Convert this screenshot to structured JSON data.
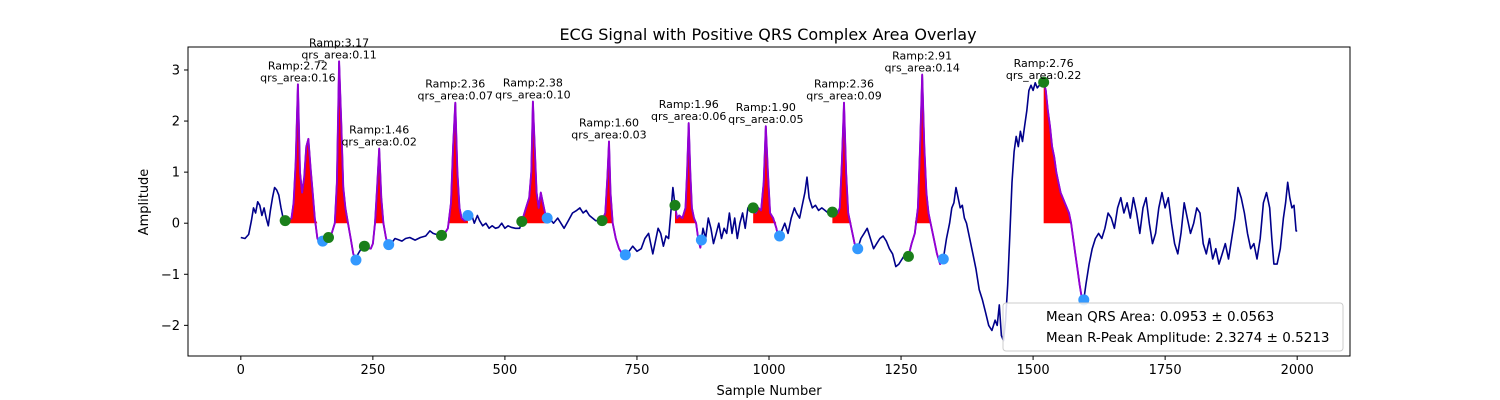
{
  "chart_data": {
    "type": "line",
    "title": "ECG Signal with Positive QRS Complex Area Overlay",
    "xlabel": "Sample Number",
    "ylabel": "Amplitude",
    "xlim": [
      -100,
      2100
    ],
    "ylim": [
      -2.6,
      3.45
    ],
    "x_ticks": [
      0,
      250,
      500,
      750,
      1000,
      1250,
      1500,
      1750,
      2000
    ],
    "y_ticks": [
      -2,
      -1,
      0,
      1,
      2,
      3
    ],
    "grid": false,
    "colors": {
      "signal": "#00008b",
      "qrs_segment": "#9400d3",
      "qrs_area": "#ff0000",
      "qrs_onset_marker": "#1a7f1a",
      "qrs_offset_marker": "#3399ff"
    },
    "signal_points": [
      [
        0,
        -0.28
      ],
      [
        8,
        -0.3
      ],
      [
        15,
        -0.22
      ],
      [
        20,
        0.05
      ],
      [
        24,
        0.3
      ],
      [
        28,
        0.2
      ],
      [
        32,
        0.42
      ],
      [
        36,
        0.35
      ],
      [
        40,
        0.15
      ],
      [
        44,
        0.3
      ],
      [
        48,
        0.1
      ],
      [
        52,
        -0.05
      ],
      [
        56,
        0.25
      ],
      [
        60,
        0.5
      ],
      [
        64,
        0.7
      ],
      [
        68,
        0.65
      ],
      [
        72,
        0.55
      ],
      [
        76,
        0.3
      ],
      [
        80,
        0.1
      ],
      [
        84,
        0.05
      ],
      [
        90,
        0.05
      ],
      [
        96,
        0.1
      ],
      [
        100,
        0.4
      ],
      [
        104,
        1.2
      ],
      [
        108,
        2.72
      ],
      [
        112,
        1.0
      ],
      [
        116,
        0.6
      ],
      [
        120,
        0.9
      ],
      [
        124,
        1.5
      ],
      [
        128,
        1.65
      ],
      [
        132,
        1.1
      ],
      [
        136,
        0.6
      ],
      [
        140,
        0.1
      ],
      [
        145,
        -0.3
      ],
      [
        150,
        -0.4
      ],
      [
        155,
        -0.35
      ],
      [
        160,
        -0.25
      ],
      [
        166,
        -0.28
      ],
      [
        172,
        -0.2
      ],
      [
        178,
        0.0
      ],
      [
        182,
        0.8
      ],
      [
        186,
        3.17
      ],
      [
        190,
        2.0
      ],
      [
        194,
        0.7
      ],
      [
        198,
        0.3
      ],
      [
        203,
        0.0
      ],
      [
        208,
        -0.3
      ],
      [
        213,
        -0.6
      ],
      [
        218,
        -0.72
      ],
      [
        222,
        -0.6
      ],
      [
        228,
        -0.5
      ],
      [
        234,
        -0.45
      ],
      [
        240,
        -0.48
      ],
      [
        246,
        -0.5
      ],
      [
        250,
        -0.4
      ],
      [
        254,
        0.0
      ],
      [
        258,
        0.7
      ],
      [
        262,
        1.46
      ],
      [
        266,
        0.5
      ],
      [
        270,
        0.0
      ],
      [
        275,
        -0.3
      ],
      [
        280,
        -0.42
      ],
      [
        286,
        -0.38
      ],
      [
        292,
        -0.3
      ],
      [
        298,
        -0.32
      ],
      [
        305,
        -0.35
      ],
      [
        312,
        -0.3
      ],
      [
        320,
        -0.28
      ],
      [
        330,
        -0.33
      ],
      [
        340,
        -0.28
      ],
      [
        350,
        -0.25
      ],
      [
        358,
        -0.15
      ],
      [
        364,
        -0.2
      ],
      [
        370,
        -0.22
      ],
      [
        378,
        -0.25
      ],
      [
        386,
        -0.2
      ],
      [
        392,
        -0.1
      ],
      [
        398,
        0.4
      ],
      [
        402,
        1.5
      ],
      [
        406,
        2.36
      ],
      [
        410,
        1.0
      ],
      [
        414,
        0.3
      ],
      [
        418,
        0.1
      ],
      [
        424,
        0.05
      ],
      [
        430,
        0.15
      ],
      [
        436,
        0.2
      ],
      [
        442,
        0.0
      ],
      [
        448,
        0.15
      ],
      [
        452,
        0.05
      ],
      [
        458,
        -0.05
      ],
      [
        464,
        0.0
      ],
      [
        470,
        -0.1
      ],
      [
        476,
        -0.05
      ],
      [
        482,
        -0.1
      ],
      [
        488,
        -0.08
      ],
      [
        494,
        0.0
      ],
      [
        500,
        -0.1
      ],
      [
        506,
        -0.05
      ],
      [
        512,
        -0.08
      ],
      [
        520,
        -0.1
      ],
      [
        528,
        -0.1
      ],
      [
        534,
        0.1
      ],
      [
        540,
        0.3
      ],
      [
        546,
        0.5
      ],
      [
        550,
        1.0
      ],
      [
        553,
        2.38
      ],
      [
        556,
        1.6
      ],
      [
        560,
        0.6
      ],
      [
        564,
        0.3
      ],
      [
        568,
        0.6
      ],
      [
        572,
        0.4
      ],
      [
        578,
        0.1
      ],
      [
        584,
        0.1
      ],
      [
        592,
        0.0
      ],
      [
        600,
        0.1
      ],
      [
        606,
        0.0
      ],
      [
        612,
        -0.1
      ],
      [
        620,
        0.05
      ],
      [
        628,
        0.2
      ],
      [
        636,
        0.25
      ],
      [
        642,
        0.3
      ],
      [
        648,
        0.2
      ],
      [
        654,
        0.25
      ],
      [
        660,
        0.15
      ],
      [
        666,
        0.1
      ],
      [
        672,
        0.05
      ],
      [
        678,
        0.05
      ],
      [
        684,
        0.05
      ],
      [
        690,
        0.2
      ],
      [
        694,
        0.9
      ],
      [
        697,
        1.6
      ],
      [
        700,
        0.6
      ],
      [
        704,
        0.0
      ],
      [
        710,
        -0.3
      ],
      [
        716,
        -0.5
      ],
      [
        722,
        -0.6
      ],
      [
        728,
        -0.62
      ],
      [
        735,
        -0.55
      ],
      [
        742,
        -0.45
      ],
      [
        750,
        -0.55
      ],
      [
        758,
        -0.5
      ],
      [
        765,
        -0.3
      ],
      [
        772,
        -0.2
      ],
      [
        780,
        -0.6
      ],
      [
        786,
        -0.3
      ],
      [
        790,
        -0.1
      ],
      [
        795,
        -0.2
      ],
      [
        800,
        -0.45
      ],
      [
        805,
        -0.25
      ],
      [
        810,
        -0.3
      ],
      [
        814,
        0.2
      ],
      [
        818,
        0.7
      ],
      [
        822,
        0.35
      ],
      [
        826,
        0.1
      ],
      [
        830,
        0.15
      ],
      [
        836,
        0.1
      ],
      [
        842,
        0.3
      ],
      [
        845,
        1.0
      ],
      [
        848,
        1.96
      ],
      [
        851,
        1.0
      ],
      [
        854,
        0.3
      ],
      [
        858,
        0.1
      ],
      [
        862,
        0.0
      ],
      [
        866,
        -0.3
      ],
      [
        870,
        -0.48
      ],
      [
        875,
        -0.1
      ],
      [
        880,
        -0.3
      ],
      [
        885,
        0.1
      ],
      [
        890,
        -0.1
      ],
      [
        895,
        -0.4
      ],
      [
        900,
        -0.2
      ],
      [
        905,
        0.0
      ],
      [
        910,
        -0.3
      ],
      [
        915,
        -0.1
      ],
      [
        920,
        -0.2
      ],
      [
        925,
        0.2
      ],
      [
        930,
        -0.2
      ],
      [
        935,
        0.1
      ],
      [
        940,
        -0.3
      ],
      [
        945,
        0.0
      ],
      [
        950,
        0.2
      ],
      [
        955,
        -0.1
      ],
      [
        960,
        0.3
      ],
      [
        965,
        0.35
      ],
      [
        970,
        0.3
      ],
      [
        975,
        0.2
      ],
      [
        980,
        0.3
      ],
      [
        985,
        0.25
      ],
      [
        990,
        0.8
      ],
      [
        994,
        1.9
      ],
      [
        998,
        1.0
      ],
      [
        1002,
        0.2
      ],
      [
        1008,
        0.1
      ],
      [
        1014,
        -0.1
      ],
      [
        1018,
        -0.3
      ],
      [
        1024,
        -0.15
      ],
      [
        1030,
        0.0
      ],
      [
        1036,
        -0.2
      ],
      [
        1042,
        0.1
      ],
      [
        1048,
        0.3
      ],
      [
        1052,
        0.2
      ],
      [
        1058,
        0.1
      ],
      [
        1062,
        0.3
      ],
      [
        1068,
        0.6
      ],
      [
        1072,
        0.9
      ],
      [
        1076,
        0.5
      ],
      [
        1082,
        0.3
      ],
      [
        1088,
        0.35
      ],
      [
        1094,
        0.25
      ],
      [
        1100,
        0.3
      ],
      [
        1106,
        0.25
      ],
      [
        1112,
        0.2
      ],
      [
        1118,
        0.2
      ],
      [
        1124,
        0.25
      ],
      [
        1130,
        0.2
      ],
      [
        1134,
        0.3
      ],
      [
        1138,
        1.2
      ],
      [
        1142,
        2.36
      ],
      [
        1146,
        1.0
      ],
      [
        1150,
        0.2
      ],
      [
        1156,
        -0.1
      ],
      [
        1162,
        -0.4
      ],
      [
        1168,
        -0.5
      ],
      [
        1174,
        -0.3
      ],
      [
        1180,
        -0.2
      ],
      [
        1186,
        -0.1
      ],
      [
        1192,
        -0.3
      ],
      [
        1198,
        -0.5
      ],
      [
        1204,
        -0.4
      ],
      [
        1210,
        -0.3
      ],
      [
        1216,
        -0.25
      ],
      [
        1222,
        -0.35
      ],
      [
        1228,
        -0.5
      ],
      [
        1234,
        -0.6
      ],
      [
        1240,
        -0.85
      ],
      [
        1246,
        -0.8
      ],
      [
        1252,
        -0.7
      ],
      [
        1258,
        -0.6
      ],
      [
        1264,
        -0.65
      ],
      [
        1270,
        -0.4
      ],
      [
        1276,
        -0.2
      ],
      [
        1282,
        0.3
      ],
      [
        1286,
        1.5
      ],
      [
        1290,
        2.91
      ],
      [
        1294,
        1.5
      ],
      [
        1298,
        0.6
      ],
      [
        1302,
        0.2
      ],
      [
        1306,
        0.0
      ],
      [
        1312,
        -0.3
      ],
      [
        1318,
        -0.6
      ],
      [
        1324,
        -0.8
      ],
      [
        1330,
        -0.7
      ],
      [
        1336,
        -0.3
      ],
      [
        1342,
        0.0
      ],
      [
        1346,
        0.3
      ],
      [
        1350,
        0.4
      ],
      [
        1354,
        0.7
      ],
      [
        1358,
        0.5
      ],
      [
        1362,
        0.3
      ],
      [
        1366,
        0.35
      ],
      [
        1370,
        0.1
      ],
      [
        1374,
        0.0
      ],
      [
        1380,
        -0.3
      ],
      [
        1386,
        -0.6
      ],
      [
        1392,
        -0.9
      ],
      [
        1398,
        -1.3
      ],
      [
        1404,
        -1.5
      ],
      [
        1410,
        -1.75
      ],
      [
        1416,
        -2.0
      ],
      [
        1422,
        -2.1
      ],
      [
        1428,
        -1.9
      ],
      [
        1432,
        -2.0
      ],
      [
        1436,
        -1.6
      ],
      [
        1440,
        -2.2
      ],
      [
        1444,
        -2.3
      ],
      [
        1448,
        -1.9
      ],
      [
        1452,
        -1.2
      ],
      [
        1456,
        -0.2
      ],
      [
        1460,
        0.8
      ],
      [
        1464,
        1.4
      ],
      [
        1468,
        1.7
      ],
      [
        1472,
        1.5
      ],
      [
        1476,
        1.8
      ],
      [
        1480,
        1.6
      ],
      [
        1484,
        1.9
      ],
      [
        1488,
        2.2
      ],
      [
        1492,
        2.6
      ],
      [
        1496,
        2.7
      ],
      [
        1500,
        2.6
      ],
      [
        1504,
        2.75
      ],
      [
        1508,
        2.65
      ],
      [
        1512,
        2.7
      ],
      [
        1516,
        2.72
      ],
      [
        1520,
        2.76
      ],
      [
        1524,
        2.6
      ],
      [
        1528,
        2.2
      ],
      [
        1532,
        1.9
      ],
      [
        1536,
        1.5
      ],
      [
        1540,
        1.3
      ],
      [
        1544,
        1.0
      ],
      [
        1548,
        0.8
      ],
      [
        1552,
        0.6
      ],
      [
        1556,
        0.5
      ],
      [
        1560,
        0.4
      ],
      [
        1564,
        0.3
      ],
      [
        1568,
        0.2
      ],
      [
        1572,
        0.0
      ],
      [
        1576,
        -0.3
      ],
      [
        1580,
        -0.6
      ],
      [
        1584,
        -0.9
      ],
      [
        1588,
        -1.2
      ],
      [
        1592,
        -1.45
      ],
      [
        1596,
        -1.5
      ],
      [
        1600,
        -1.2
      ],
      [
        1606,
        -0.8
      ],
      [
        1612,
        -0.5
      ],
      [
        1618,
        -0.3
      ],
      [
        1624,
        -0.2
      ],
      [
        1630,
        -0.3
      ],
      [
        1636,
        -0.1
      ],
      [
        1642,
        0.2
      ],
      [
        1648,
        0.1
      ],
      [
        1654,
        -0.1
      ],
      [
        1660,
        0.3
      ],
      [
        1666,
        0.5
      ],
      [
        1672,
        0.2
      ],
      [
        1678,
        0.4
      ],
      [
        1684,
        0.1
      ],
      [
        1690,
        0.5
      ],
      [
        1696,
        0.2
      ],
      [
        1702,
        -0.2
      ],
      [
        1708,
        0.3
      ],
      [
        1714,
        0.5
      ],
      [
        1720,
        0.0
      ],
      [
        1726,
        -0.4
      ],
      [
        1732,
        -0.2
      ],
      [
        1738,
        0.3
      ],
      [
        1744,
        0.6
      ],
      [
        1750,
        0.3
      ],
      [
        1756,
        0.5
      ],
      [
        1762,
        0.0
      ],
      [
        1768,
        -0.4
      ],
      [
        1774,
        -0.6
      ],
      [
        1780,
        -0.2
      ],
      [
        1786,
        0.4
      ],
      [
        1792,
        0.1
      ],
      [
        1798,
        -0.2
      ],
      [
        1804,
        0.0
      ],
      [
        1810,
        0.3
      ],
      [
        1816,
        0.2
      ],
      [
        1822,
        -0.4
      ],
      [
        1828,
        -0.6
      ],
      [
        1834,
        -0.3
      ],
      [
        1840,
        -0.7
      ],
      [
        1846,
        -0.5
      ],
      [
        1852,
        -0.8
      ],
      [
        1858,
        -0.6
      ],
      [
        1864,
        -0.4
      ],
      [
        1870,
        -0.7
      ],
      [
        1876,
        -0.3
      ],
      [
        1882,
        0.1
      ],
      [
        1888,
        0.7
      ],
      [
        1894,
        0.5
      ],
      [
        1900,
        0.2
      ],
      [
        1906,
        -0.2
      ],
      [
        1912,
        -0.5
      ],
      [
        1918,
        -0.4
      ],
      [
        1924,
        -0.7
      ],
      [
        1930,
        -0.3
      ],
      [
        1936,
        0.4
      ],
      [
        1942,
        0.6
      ],
      [
        1948,
        0.3
      ],
      [
        1952,
        -0.3
      ],
      [
        1956,
        -0.8
      ],
      [
        1962,
        -0.8
      ],
      [
        1968,
        -0.5
      ],
      [
        1974,
        0.1
      ],
      [
        1978,
        0.4
      ],
      [
        1982,
        0.8
      ],
      [
        1986,
        0.5
      ],
      [
        1990,
        0.3
      ],
      [
        1994,
        0.35
      ],
      [
        1998,
        -0.15
      ],
      [
        2000,
        -0.15
      ]
    ],
    "qrs_complexes": [
      {
        "onset": 84,
        "peak": 108,
        "offset": 155,
        "amp": "2.72",
        "area": "0.16"
      },
      {
        "onset": 166,
        "peak": 186,
        "offset": 218,
        "amp": "3.17",
        "area": "0.11"
      },
      {
        "onset": 234,
        "peak": 262,
        "offset": 280,
        "amp": "1.46",
        "area": "0.02"
      },
      {
        "onset": 380,
        "peak": 406,
        "offset": 430,
        "amp": "2.36",
        "area": "0.07"
      },
      {
        "onset": 532,
        "peak": 553,
        "offset": 580,
        "amp": "2.38",
        "area": "0.10"
      },
      {
        "onset": 684,
        "peak": 697,
        "offset": 728,
        "amp": "1.60",
        "area": "0.03"
      },
      {
        "onset": 822,
        "peak": 848,
        "offset": 872,
        "amp": "1.96",
        "area": "0.06"
      },
      {
        "onset": 970,
        "peak": 994,
        "offset": 1020,
        "amp": "1.90",
        "area": "0.05"
      },
      {
        "onset": 1120,
        "peak": 1142,
        "offset": 1168,
        "amp": "2.36",
        "area": "0.09"
      },
      {
        "onset": 1264,
        "peak": 1290,
        "offset": 1330,
        "amp": "2.91",
        "area": "0.14"
      },
      {
        "onset": 1520,
        "peak": 1520,
        "offset": 1596,
        "amp": "2.76",
        "area": "0.22"
      }
    ],
    "annotation_prefix_amp": "Ramp:",
    "annotation_prefix_area": "qrs_area:",
    "legend": {
      "placement": "lower-right",
      "entries": [
        "Mean QRS Area: 0.0953 ± 0.0563",
        "Mean R-Peak Amplitude: 2.3274 ± 0.5213"
      ]
    }
  }
}
